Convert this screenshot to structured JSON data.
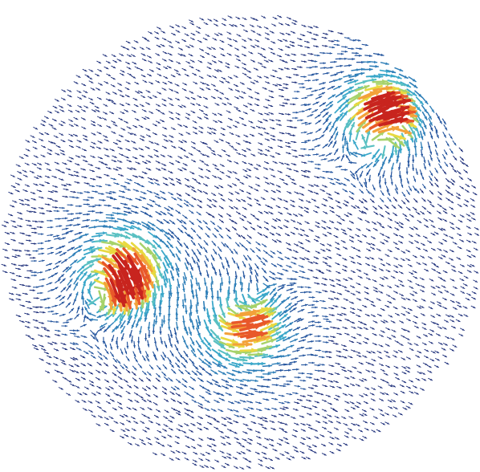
{
  "figure": {
    "background": "#ffffff",
    "palette": [
      "#1d2f7a",
      "#24559e",
      "#2f7fb8",
      "#3aa7c9",
      "#59c0c2",
      "#a6d26a",
      "#e8d940",
      "#f3a23a",
      "#e8582a",
      "#c8241e"
    ],
    "clusters": [
      {
        "name": "left-vortex-core",
        "strength": 1.0,
        "circulation": 1
      },
      {
        "name": "center-vortex-core",
        "strength": 0.7,
        "circulation": -1
      },
      {
        "name": "upper-right-vortex-core",
        "strength": 0.95,
        "circulation": 1
      }
    ]
  }
}
